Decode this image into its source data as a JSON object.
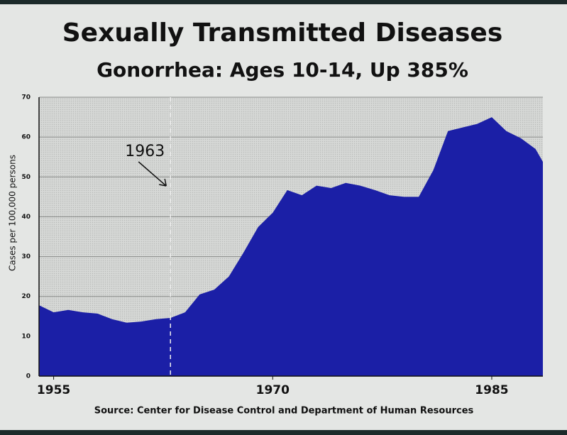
{
  "chart_data": {
    "type": "area",
    "title": "Sexually Transmitted Diseases",
    "subtitle": "Gonorrhea: Ages 10-14, Up 385%",
    "y_label": "Cases per 100,000 persons",
    "source": "Source: Center for Disease Control and Department of Human Resources",
    "annotation": {
      "text": "1963",
      "x": 1963
    },
    "x": [
      1954,
      1955,
      1956,
      1957,
      1958,
      1959,
      1960,
      1961,
      1962,
      1963,
      1964,
      1965,
      1966,
      1967,
      1968,
      1969,
      1970,
      1971,
      1972,
      1973,
      1974,
      1975,
      1976,
      1977,
      1978,
      1979,
      1980,
      1981,
      1982,
      1983,
      1984,
      1985,
      1986,
      1987,
      1988,
      1988.5
    ],
    "values": [
      17.8,
      16,
      16.6,
      16,
      15.7,
      14.3,
      13.4,
      13.7,
      14.3,
      14.6,
      16,
      20.5,
      21.7,
      25,
      31,
      37.4,
      41,
      46.7,
      45.4,
      47.8,
      47.2,
      48.5,
      47.8,
      46.7,
      45.4,
      45,
      45,
      51.7,
      61.5,
      62.4,
      63.3,
      65,
      61.5,
      59.7,
      57,
      53.8
    ],
    "color": "#1b1fa6",
    "xlim": [
      1954,
      1988.5
    ],
    "xticks": [
      1955,
      1970,
      1985
    ],
    "ylim": [
      0,
      70
    ],
    "yticks": [
      0,
      10,
      20,
      30,
      40,
      50,
      60,
      70
    ],
    "grid": true
  }
}
